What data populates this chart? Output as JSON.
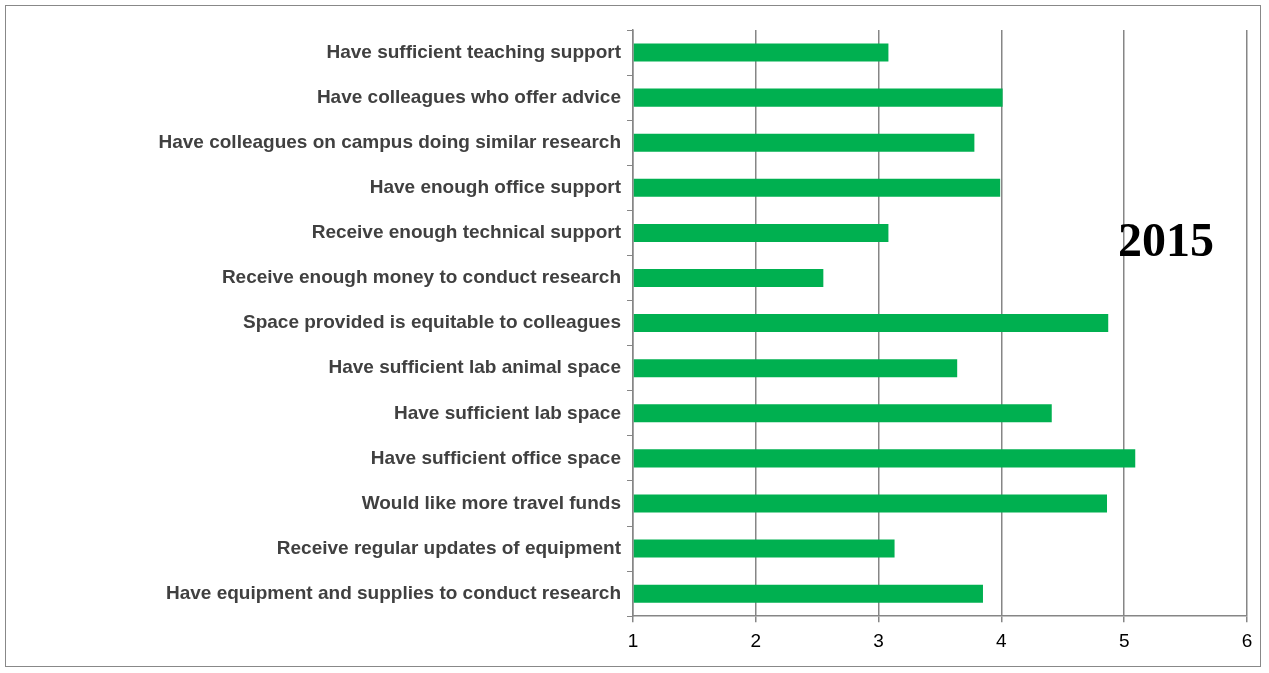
{
  "chart_data": {
    "type": "bar",
    "orientation": "horizontal",
    "categories": [
      "Have sufficient teaching support",
      "Have colleagues who offer advice",
      "Have colleagues on campus doing similar research",
      "Have enough office support",
      "Receive enough technical support",
      "Receive enough money to conduct research",
      "Space provided is equitable to colleagues",
      "Have sufficient lab animal space",
      "Have sufficient lab space",
      "Have sufficient office space",
      "Would like more travel funds",
      "Receive regular updates of equipment",
      "Have equipment and supplies to conduct research"
    ],
    "values": [
      3.08,
      4.01,
      3.78,
      3.99,
      3.08,
      2.55,
      4.87,
      3.64,
      4.41,
      5.09,
      4.86,
      3.13,
      3.85
    ],
    "color": "#00b050",
    "xlim": [
      1,
      6
    ],
    "xticks": [
      1,
      2,
      3,
      4,
      5,
      6
    ],
    "grid": "x",
    "legend": false,
    "annotations": [
      "2015"
    ]
  }
}
